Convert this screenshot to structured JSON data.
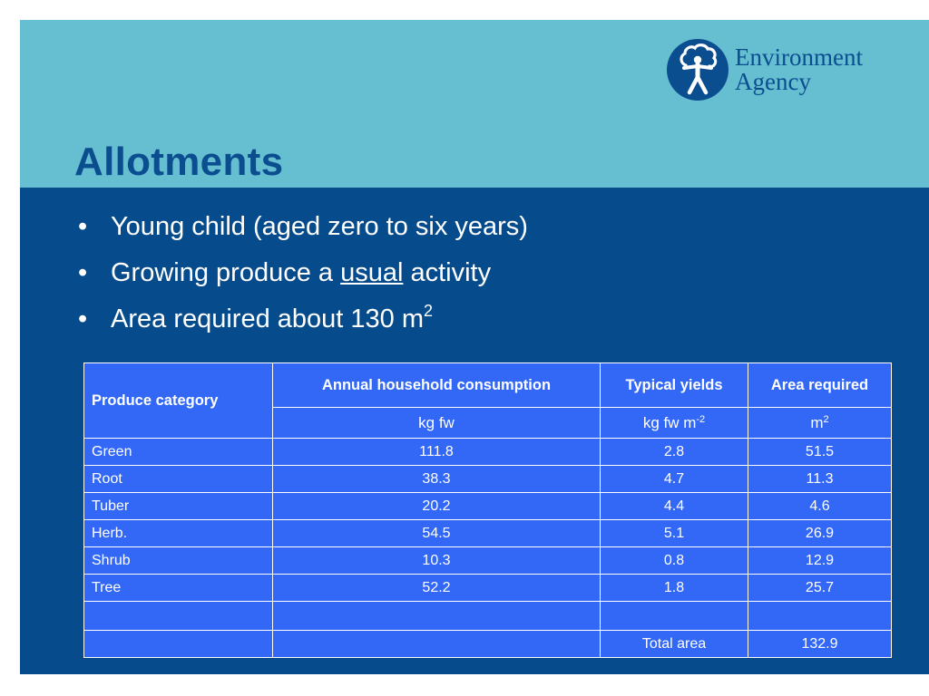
{
  "slide": {
    "title": "Allotments",
    "logo": {
      "line1": "Environment",
      "line2": "Agency",
      "brand_color": "#0b4e90"
    },
    "bullets": [
      {
        "text": "Young child (aged zero to six years)"
      },
      {
        "before": "Growing produce a ",
        "underlined": "usual",
        "after": " activity"
      },
      {
        "text": "Area required about 130 m",
        "sup": "2"
      }
    ]
  },
  "table": {
    "headers": {
      "category": "Produce category",
      "consumption": "Annual household consumption",
      "yields": "Typical yields",
      "area": "Area required"
    },
    "units": {
      "consumption": "kg fw",
      "yields": "kg fw m",
      "yields_sup": "-2",
      "area": "m",
      "area_sup": "2"
    },
    "rows": [
      {
        "category": "Green",
        "consumption": "111.8",
        "yields": "2.8",
        "area": "51.5"
      },
      {
        "category": "Root",
        "consumption": "38.3",
        "yields": "4.7",
        "area": "11.3"
      },
      {
        "category": "Tuber",
        "consumption": "20.2",
        "yields": "4.4",
        "area": "4.6"
      },
      {
        "category": "Herb.",
        "consumption": "54.5",
        "yields": "5.1",
        "area": "26.9"
      },
      {
        "category": "Shrub",
        "consumption": "10.3",
        "yields": "0.8",
        "area": "12.9"
      },
      {
        "category": "Tree",
        "consumption": "52.2",
        "yields": "1.8",
        "area": "25.7"
      }
    ],
    "total": {
      "label": "Total area",
      "value": "132.9"
    }
  },
  "colors": {
    "slide_background": "#064b8c",
    "top_band": "#66bfd0",
    "table_cell": "#3268f5"
  }
}
